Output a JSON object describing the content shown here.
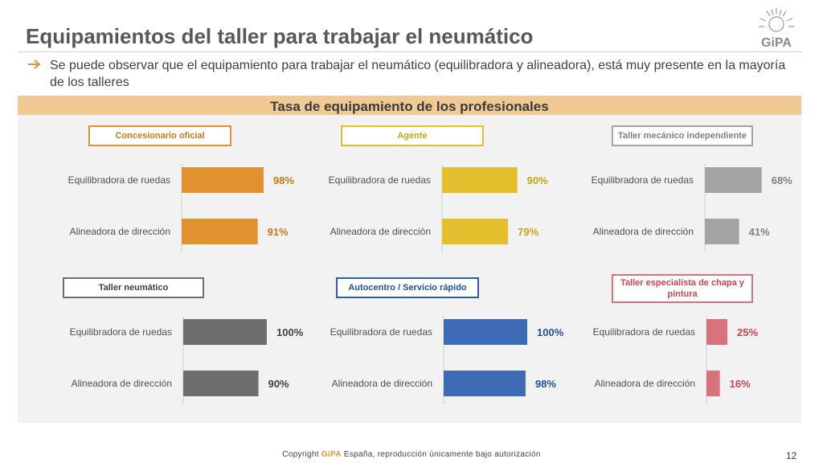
{
  "title": "Equipamientos del taller para trabajar el neumático",
  "logo_text": "GiPA",
  "bullet": "Se puede observar que el equipamiento para trabajar el neumático (equilibradora y alineadora), está muy presente en la mayoría de los talleres",
  "panel_title": "Tasa de equipamiento de los profesionales",
  "footer": {
    "copyright_prefix": "Copyright ",
    "brand": "GiPA",
    "copyright_suffix": " España, reproducción únicamente bajo autorización",
    "page": "12"
  },
  "chart_data": [
    {
      "type": "bar",
      "title": "Concesionario oficial",
      "categories": [
        "Equilibradora de ruedas",
        "Alineadora de dirección"
      ],
      "values": [
        98,
        91
      ],
      "value_labels": [
        "98%",
        "91%"
      ],
      "xlim": [
        0,
        100
      ],
      "color": "#e0922f",
      "title_color": "#c57a1a",
      "border_color": "#e0922f"
    },
    {
      "type": "bar",
      "title": "Agente",
      "categories": [
        "Equilibradora de ruedas",
        "Alineadora de dirección"
      ],
      "values": [
        90,
        79
      ],
      "value_labels": [
        "90%",
        "79%"
      ],
      "xlim": [
        0,
        100
      ],
      "color": "#e5be2e",
      "title_color": "#c9a31a",
      "border_color": "#e5be2e"
    },
    {
      "type": "bar",
      "title": "Taller mecánico independiente",
      "categories": [
        "Equilibradora de ruedas",
        "Alineadora de dirección"
      ],
      "values": [
        68,
        41
      ],
      "value_labels": [
        "68%",
        "41%"
      ],
      "xlim": [
        0,
        100
      ],
      "color": "#a3a3a3",
      "title_color": "#7f7f7f",
      "border_color": "#a3a3a3"
    },
    {
      "type": "bar",
      "title": "Taller neumático",
      "categories": [
        "Equilibradora de ruedas",
        "Alineadora de dirección"
      ],
      "values": [
        100,
        90
      ],
      "value_labels": [
        "100%",
        "90%"
      ],
      "xlim": [
        0,
        100
      ],
      "color": "#6e6e70",
      "title_color": "#404040",
      "border_color": "#6e6e70"
    },
    {
      "type": "bar",
      "title": "Autocentro / Servicio rápido",
      "categories": [
        "Equilibradora de ruedas",
        "Alineadora de dirección"
      ],
      "values": [
        100,
        98
      ],
      "value_labels": [
        "100%",
        "98%"
      ],
      "xlim": [
        0,
        100
      ],
      "color": "#3e6bb5",
      "title_color": "#1f4f9e",
      "border_color": "#2f5ea8"
    },
    {
      "type": "bar",
      "title": "Taller especialista de chapa y pintura",
      "categories": [
        "Equilibradora de ruedas",
        "Alineadora de dirección"
      ],
      "values": [
        25,
        16
      ],
      "value_labels": [
        "25%",
        "16%"
      ],
      "xlim": [
        0,
        100
      ],
      "color": "#d9737b",
      "title_color": "#c9444f",
      "border_color": "#d9737b"
    }
  ],
  "colors": {
    "title": "#58585a",
    "panel_background": "#f2f2f2",
    "panel_header": "#f0c994",
    "accent": "#e09530"
  }
}
